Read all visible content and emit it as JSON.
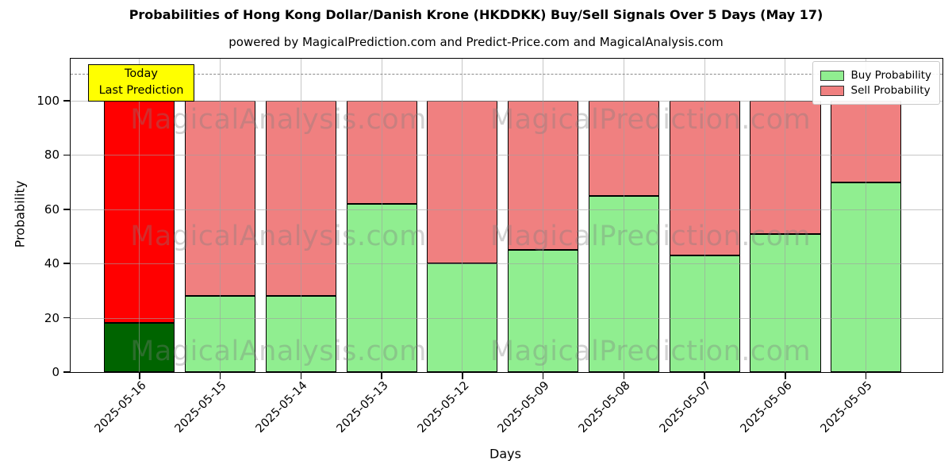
{
  "header": {
    "title": "Probabilities of Hong Kong Dollar/Danish Krone (HKDDKK) Buy/Sell Signals Over 5 Days (May 17)",
    "subtitle": "powered by MagicalPrediction.com and Predict-Price.com and MagicalAnalysis.com"
  },
  "axes": {
    "ylabel": "Probability",
    "xlabel": "Days"
  },
  "legend": {
    "buy_label": "Buy Probability",
    "sell_label": "Sell Probability"
  },
  "annotation": {
    "line1": "Today",
    "line2": "Last Prediction"
  },
  "watermarks": {
    "analysis": "MagicalAnalysis.com",
    "prediction": "MagicalPrediction.com"
  },
  "chart_data": {
    "type": "bar",
    "stacked": true,
    "title": "Probabilities of Hong Kong Dollar/Danish Krone (HKDDKK) Buy/Sell Signals Over 5 Days (May 17)",
    "xlabel": "Days",
    "ylabel": "Probability",
    "categories": [
      "2025-05-16",
      "2025-05-15",
      "2025-05-14",
      "2025-05-13",
      "2025-05-12",
      "2025-05-09",
      "2025-05-08",
      "2025-05-07",
      "2025-05-06",
      "2025-05-05"
    ],
    "series": [
      {
        "name": "Buy Probability",
        "values": [
          18,
          28,
          28,
          62,
          40,
          45,
          65,
          43,
          51,
          70
        ]
      },
      {
        "name": "Sell Probability",
        "values": [
          82,
          72,
          72,
          38,
          60,
          55,
          35,
          57,
          49,
          30
        ]
      }
    ],
    "ylim": [
      0,
      115.5
    ],
    "yticks": [
      0,
      20,
      40,
      60,
      80,
      100
    ],
    "threshold_line": 110,
    "grid": true,
    "legend_position": "upper right",
    "colors": {
      "buy": "#90EE90",
      "sell": "#F08080",
      "buy_today": "#006400",
      "sell_today": "#FF0000",
      "annotation_bg": "#FFFF00"
    },
    "today_highlight_category": "2025-05-16"
  }
}
